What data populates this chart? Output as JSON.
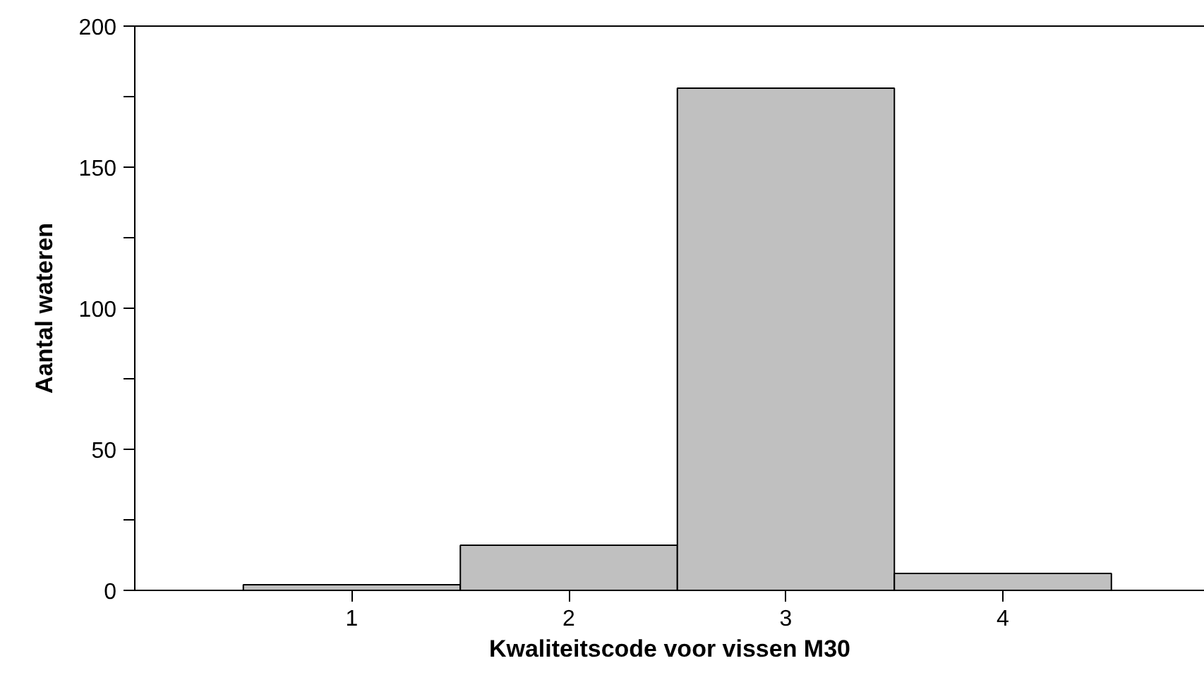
{
  "chart_data": {
    "type": "histogram",
    "xlabel": "Kwaliteitscode voor vissen M30",
    "ylabel": "Aantal wateren",
    "bins": [
      0.5,
      1.5,
      2.5,
      3.5,
      4.5
    ],
    "values": [
      2,
      16,
      178,
      6
    ],
    "color": "#c0c0c0",
    "xlim": [
      0,
      4.93
    ],
    "xticks": [
      1,
      2,
      3,
      4
    ],
    "ylim": [
      0,
      200
    ],
    "yticks": [
      0,
      {
        "value": 25,
        "label": null
      },
      50,
      {
        "value": 75,
        "label": null
      },
      100,
      {
        "value": 125,
        "label": null
      },
      150,
      {
        "value": 175,
        "label": null
      },
      200
    ],
    "grid": false
  }
}
